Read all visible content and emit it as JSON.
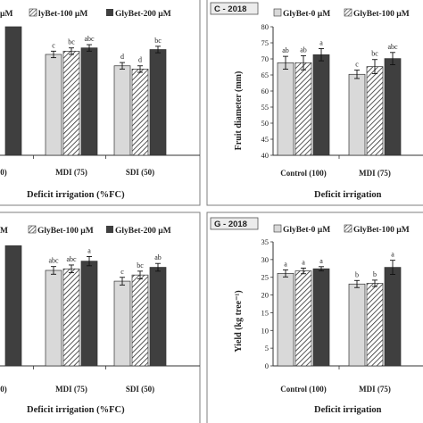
{
  "colors": {
    "glybet_0": "#d9d9d9",
    "glybet_100_hatch": "#2b2b2b",
    "glybet_200": "#3f3f3f",
    "frame": "#7f7f7f",
    "title_box": "#ececec"
  },
  "chart_data": [
    {
      "id": "top-left",
      "type": "bar",
      "title": "",
      "legend": [
        "lyBet-100 µM",
        "GlyBet-200 µM"
      ],
      "legend_left_fragment": "µM",
      "categories": [
        "(100)",
        "MDI (75)",
        "SDI (50)"
      ],
      "xlabel": "Deficit irrigation   (%FC)",
      "ylabel": "",
      "series": [
        {
          "name": "GlyBet-0 µM",
          "values": [
            null,
            0.62,
            0.55
          ],
          "errors": [
            null,
            0.02,
            0.02
          ],
          "letters": [
            null,
            "c",
            "d"
          ]
        },
        {
          "name": "GlyBet-100 µM",
          "values": [
            null,
            0.64,
            0.53
          ],
          "errors": [
            null,
            0.02,
            0.02
          ],
          "letters": [
            null,
            "bc",
            "d"
          ]
        },
        {
          "name": "GlyBet-200 µM",
          "values": [
            0.79,
            0.66,
            0.65
          ],
          "errors": [
            null,
            0.02,
            0.02
          ],
          "letters": [
            null,
            "abc",
            "bc"
          ]
        }
      ]
    },
    {
      "id": "C-2018",
      "type": "bar",
      "title": "C - 2018",
      "legend": [
        "GlyBet-0 µM",
        "GlyBet-100 µM"
      ],
      "categories": [
        "Control (100)",
        "MDI (75)"
      ],
      "xlabel": "Deficit irrigation",
      "ylabel": "Fruit diameter (mm)",
      "ylim": [
        40,
        80
      ],
      "yticks": [
        40,
        45,
        50,
        55,
        60,
        65,
        70,
        75,
        80
      ],
      "series": [
        {
          "name": "GlyBet-0 µM",
          "values": [
            68.8,
            65.2
          ],
          "errors": [
            2.0,
            1.3
          ],
          "letters": [
            "ab",
            "c"
          ]
        },
        {
          "name": "GlyBet-100 µM",
          "values": [
            68.8,
            67.6
          ],
          "errors": [
            2.2,
            2.2
          ],
          "letters": [
            "ab",
            "bc"
          ]
        },
        {
          "name": "GlyBet-200 µM",
          "values": [
            71.3,
            70.1
          ],
          "errors": [
            1.9,
            1.9
          ],
          "letters": [
            "a",
            "abc"
          ]
        }
      ]
    },
    {
      "id": "bottom-left",
      "type": "bar",
      "title": "",
      "legend": [
        "GlyBet-100 µM",
        "GlyBet-200 µM"
      ],
      "legend_left_fragment": "M",
      "categories": [
        "(100)",
        "MDI (75)",
        "SDI (50)"
      ],
      "xlabel": "Deficit irrigation   (%FC)",
      "ylabel": "",
      "series": [
        {
          "name": "GlyBet-0 µM",
          "values": [
            null,
            0.62,
            0.55
          ],
          "errors": [
            null,
            0.025,
            0.025
          ],
          "letters": [
            null,
            "abc",
            "c"
          ]
        },
        {
          "name": "GlyBet-100 µM",
          "values": [
            null,
            0.63,
            0.59
          ],
          "errors": [
            null,
            0.025,
            0.025
          ],
          "letters": [
            null,
            "abc",
            "bc"
          ]
        },
        {
          "name": "GlyBet-200 µM",
          "values": [
            0.78,
            0.68,
            0.64
          ],
          "errors": [
            null,
            0.03,
            0.025
          ],
          "letters": [
            null,
            "a",
            "ab"
          ]
        }
      ]
    },
    {
      "id": "G-2018",
      "type": "bar",
      "title": "G - 2018",
      "legend": [
        "GlyBet-0 µM",
        "GlyBet-100 µM"
      ],
      "categories": [
        "Control (100)",
        "MDI (75)"
      ],
      "xlabel": "Deficit irrigation",
      "ylabel": "Yield (kg tree⁻¹)",
      "ylim": [
        0,
        35
      ],
      "yticks": [
        0,
        5,
        10,
        15,
        20,
        25,
        30,
        35
      ],
      "series": [
        {
          "name": "GlyBet-0 µM",
          "values": [
            26.1,
            23.1
          ],
          "errors": [
            1.0,
            1.0
          ],
          "letters": [
            "a",
            "b"
          ]
        },
        {
          "name": "GlyBet-100 µM",
          "values": [
            26.8,
            23.3
          ],
          "errors": [
            0.8,
            0.9
          ],
          "letters": [
            "a",
            "b"
          ]
        },
        {
          "name": "GlyBet-200 µM",
          "values": [
            27.4,
            27.8
          ],
          "errors": [
            0.6,
            2.0
          ],
          "letters": [
            "a",
            "a"
          ]
        }
      ]
    }
  ]
}
